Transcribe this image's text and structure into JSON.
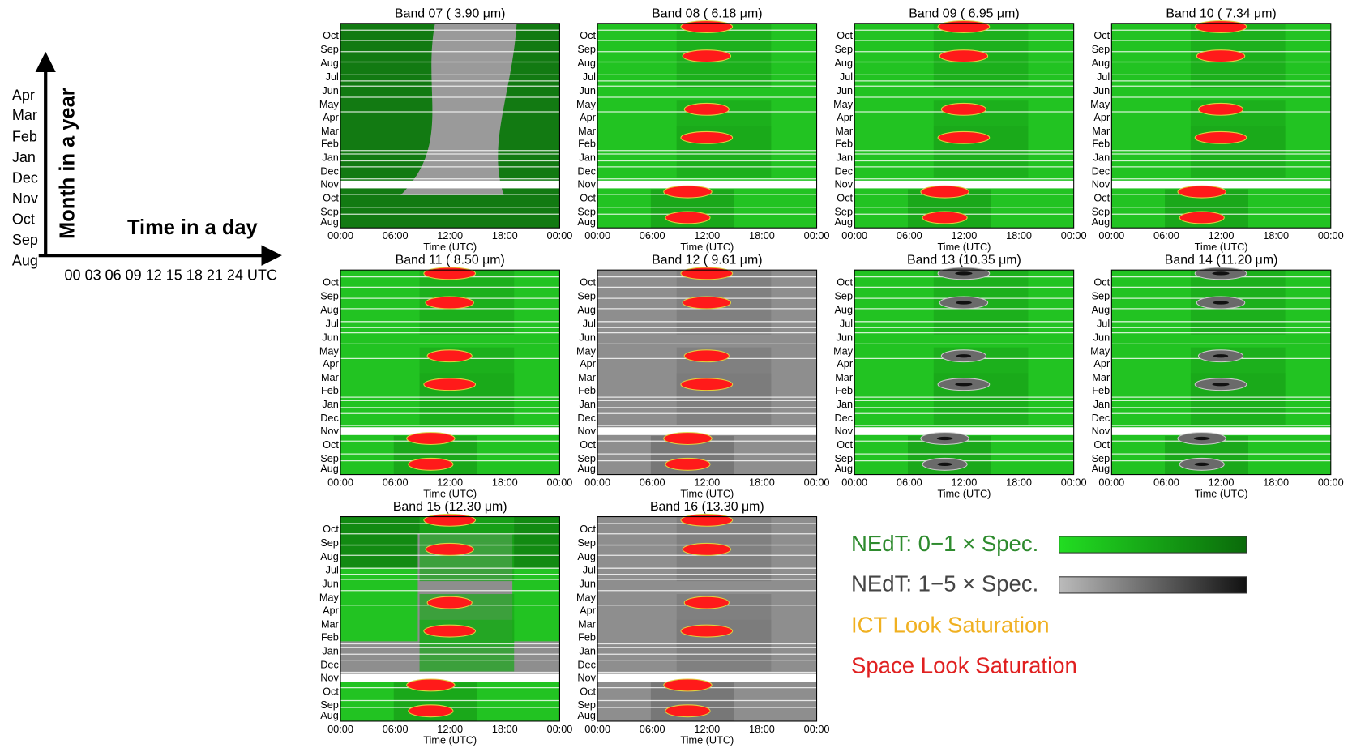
{
  "schematic": {
    "y_months": [
      "Apr",
      "Mar",
      "Feb",
      "Jan",
      "Dec",
      "Nov",
      "Oct",
      "Sep",
      "Aug"
    ],
    "y_title": "Month in a year",
    "x_title": "Time in a day",
    "x_ticks": "00 03 06 09 12 15 18 21 24 UTC"
  },
  "panel_axes": {
    "months": [
      "Oct",
      "Sep",
      "Aug",
      "Jul",
      "Jun",
      "May",
      "Apr",
      "Mar",
      "Feb",
      "Jan",
      "Dec",
      "Nov",
      "Oct",
      "Sep",
      "Aug"
    ],
    "x_ticks": [
      "00:00",
      "06:00",
      "12:00",
      "18:00",
      "00:00"
    ],
    "x_title": "Time (UTC)"
  },
  "panels": [
    {
      "title": "Band 07 ( 3.90 μm)"
    },
    {
      "title": "Band 08 ( 6.18 μm)"
    },
    {
      "title": "Band 09 ( 6.95 μm)"
    },
    {
      "title": "Band 10 ( 7.34 μm)"
    },
    {
      "title": "Band 11 ( 8.50 μm)"
    },
    {
      "title": "Band 12 ( 9.61 μm)"
    },
    {
      "title": "Band 13 (10.35 μm)"
    },
    {
      "title": "Band 14 (11.20 μm)"
    },
    {
      "title": "Band 15 (12.30 μm)"
    },
    {
      "title": "Band 16 (13.30 μm)"
    }
  ],
  "legend": [
    "NEdT: 0−1 × Spec.",
    "NEdT: 1−5 × Spec.",
    "ICT Look Saturation",
    "Space Look Saturation"
  ]
}
